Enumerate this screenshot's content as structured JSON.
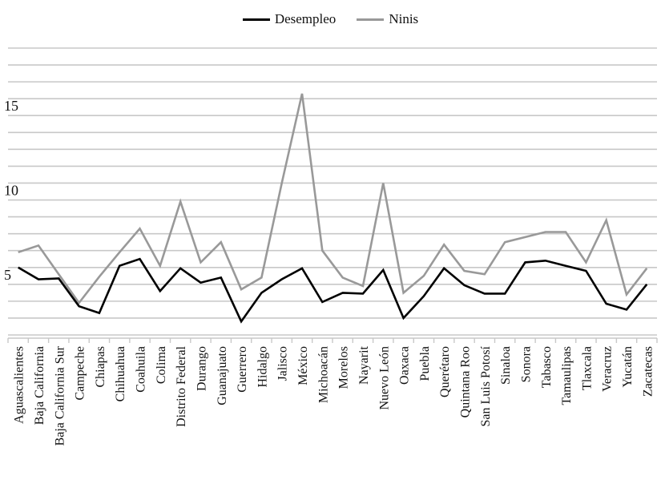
{
  "chart_data": {
    "type": "line",
    "title": "",
    "xlabel": "",
    "ylabel": "",
    "categories": [
      "Aguascalientes",
      "Baja California",
      "Baja California Sur",
      "Campeche",
      "Chiapas",
      "Chihuahua",
      "Coahuila",
      "Colima",
      "Distrito Federal",
      "Durango",
      "Guanajuato",
      "Guerrero",
      "Hidalgo",
      "Jalisco",
      "México",
      "Michoacán",
      "Morelos",
      "Nayarit",
      "Nuevo León",
      "Oaxaca",
      "Puebla",
      "Querétaro",
      "Quintana Roo",
      "San Luis Potosí",
      "Sinaloa",
      "Sonora",
      "Tabasco",
      "Tamaulipas",
      "Tlaxcala",
      "Veracruz",
      "Yucatán",
      "Zacatecas"
    ],
    "series": [
      {
        "name": "Desempleo",
        "color": "#000000",
        "values": [
          6.0,
          5.3,
          5.35,
          3.7,
          3.3,
          6.1,
          6.5,
          4.6,
          5.95,
          5.1,
          5.4,
          2.8,
          4.5,
          5.3,
          5.95,
          3.95,
          4.5,
          4.45,
          5.85,
          3.0,
          4.3,
          5.95,
          4.95,
          4.45,
          4.45,
          6.3,
          6.4,
          6.1,
          5.8,
          3.85,
          3.5,
          5.0
        ]
      },
      {
        "name": "Ninis",
        "color": "#999999",
        "values": [
          6.9,
          7.3,
          5.6,
          3.9,
          5.45,
          6.9,
          8.3,
          6.1,
          9.9,
          6.3,
          7.5,
          4.7,
          5.4,
          11.0,
          16.3,
          7.0,
          5.4,
          4.9,
          11.0,
          4.5,
          5.5,
          7.35,
          5.8,
          5.6,
          7.5,
          7.8,
          8.1,
          8.1,
          6.3,
          8.8,
          4.4,
          5.95
        ]
      }
    ],
    "ylim": [
      2,
      19
    ],
    "yticks": [
      5,
      10,
      15
    ],
    "gridlines_every": 1,
    "grid": true,
    "legend_position": "top-center"
  }
}
